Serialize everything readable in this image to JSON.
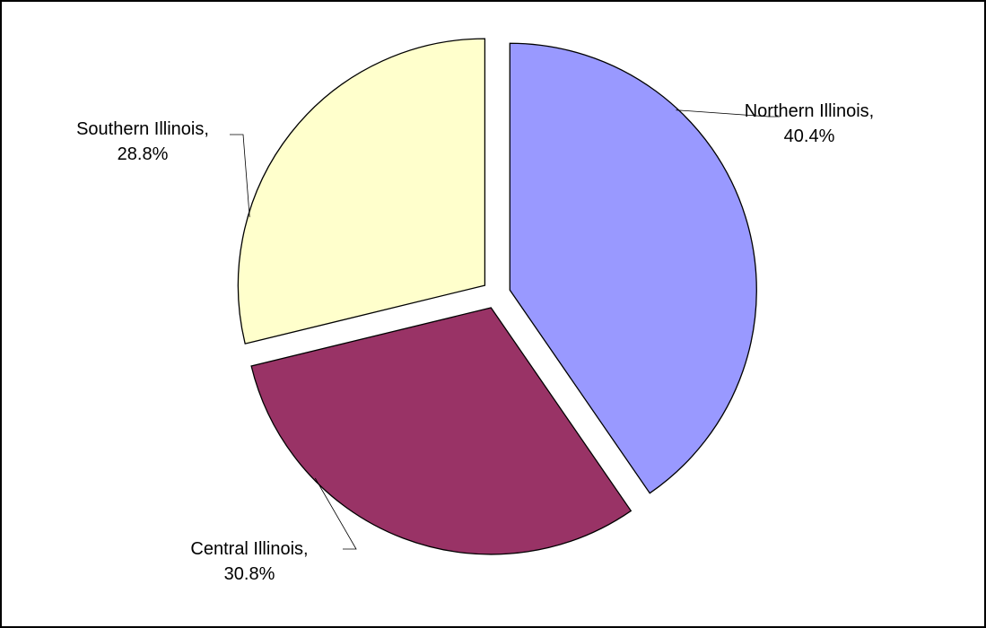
{
  "chart_data": {
    "type": "pie",
    "title": "",
    "slices": [
      {
        "label": "Northern Illinois",
        "value": 40.4,
        "value_text": "40.4%",
        "color": "#9999FF"
      },
      {
        "label": "Central Illinois",
        "value": 30.8,
        "value_text": "30.8%",
        "color": "#993366"
      },
      {
        "label": "Southern Illinois",
        "value": 28.8,
        "value_text": "28.8%",
        "color": "#FFFFCC"
      }
    ],
    "exploded": true,
    "start_angle": "12 o'clock, clockwise",
    "legend": "none",
    "label_style": "category name and percentage with leader lines"
  }
}
